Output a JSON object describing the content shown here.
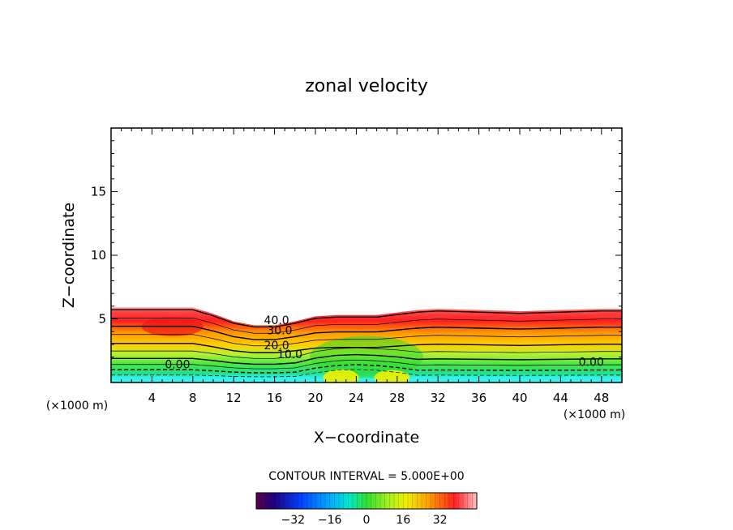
{
  "chart_data": {
    "type": "contour",
    "title": "zonal velocity",
    "xlabel": "X−coordinate",
    "ylabel": "Z−coordinate",
    "x_unit_left": "(×1000 m)",
    "x_unit_right": "(×1000 m)",
    "xlim": [
      0,
      50
    ],
    "ylim": [
      0,
      20
    ],
    "x_ticks": [
      4,
      8,
      12,
      16,
      20,
      24,
      28,
      32,
      36,
      40,
      44,
      48
    ],
    "x_tick_labels": [
      "4",
      "8",
      "12",
      "16",
      "20",
      "24",
      "28",
      "32",
      "36",
      "40",
      "44",
      "48"
    ],
    "y_ticks": [
      5,
      10,
      15
    ],
    "y_tick_labels": [
      "5",
      "10",
      "15"
    ],
    "contour_interval_text": "CONTOUR INTERVAL = 5.000E+00",
    "contour_interval": 5.0,
    "grid": false,
    "field_top_profile": {
      "x": [
        0,
        4,
        8,
        10,
        12,
        14,
        16,
        18,
        20,
        22,
        24,
        26,
        28,
        30,
        32,
        36,
        40,
        44,
        48,
        50
      ],
      "z": [
        5.9,
        5.9,
        5.9,
        5.4,
        4.8,
        4.5,
        4.5,
        4.8,
        5.2,
        5.3,
        5.3,
        5.3,
        5.5,
        5.7,
        5.8,
        5.7,
        5.6,
        5.7,
        5.8,
        5.8
      ]
    },
    "field_summary": [
      {
        "region": "top layer, z ≈ 4–6",
        "value": "30 to 45"
      },
      {
        "region": "mid layer, z ≈ 2–4",
        "value": "10 to 25"
      },
      {
        "region": "lower layer, z ≈ 0.5–2",
        "value": "0 to 10"
      },
      {
        "region": "near surface, z < 0.5",
        "value": "−5 to 0"
      }
    ],
    "contour_labels": [
      {
        "text": "40.0",
        "x": 16.2,
        "z": 4.6
      },
      {
        "text": "30.0",
        "x": 16.5,
        "z": 3.8
      },
      {
        "text": "20.0",
        "x": 16.2,
        "z": 2.6
      },
      {
        "text": "10.0",
        "x": 17.5,
        "z": 1.9
      },
      {
        "text": "0.00",
        "x": 6.5,
        "z": 1.1
      },
      {
        "text": "0.00",
        "x": 47,
        "z": 1.3
      }
    ],
    "colorbar": {
      "ticks": [
        -32,
        -16,
        0,
        16,
        32
      ],
      "tick_labels": [
        "−32",
        "−16",
        "0",
        "16",
        "32"
      ],
      "range": [
        -48,
        48
      ]
    },
    "colors": {
      "near_surface": "#33f0ee",
      "low": "#55ee55",
      "mid": "#c8f034",
      "upper_mid": "#ffaa00",
      "top": "#ff2a2a",
      "top_edge": "#ff8080"
    }
  }
}
